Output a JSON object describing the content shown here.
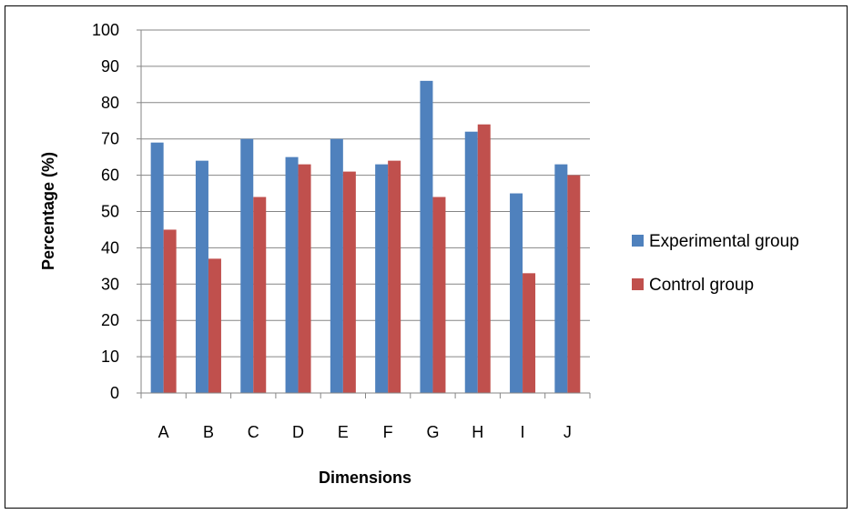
{
  "chart_data": {
    "type": "bar",
    "title": "",
    "xlabel": "Dimensions",
    "ylabel": "Percentage (%)",
    "ylim": [
      0,
      100
    ],
    "y_ticks": [
      0,
      10,
      20,
      30,
      40,
      50,
      60,
      70,
      80,
      90,
      100
    ],
    "grid": true,
    "legend_position": "right",
    "categories": [
      "A",
      "B",
      "C",
      "D",
      "E",
      "F",
      "G",
      "H",
      "I",
      "J"
    ],
    "series": [
      {
        "name": "Experimental group",
        "color": "#4F81BD",
        "values": [
          69,
          64,
          70,
          65,
          70,
          63,
          86,
          72,
          55,
          63
        ]
      },
      {
        "name": "Control group",
        "color": "#C0504D",
        "values": [
          45,
          37,
          54,
          63,
          61,
          64,
          54,
          74,
          33,
          60
        ]
      }
    ]
  }
}
